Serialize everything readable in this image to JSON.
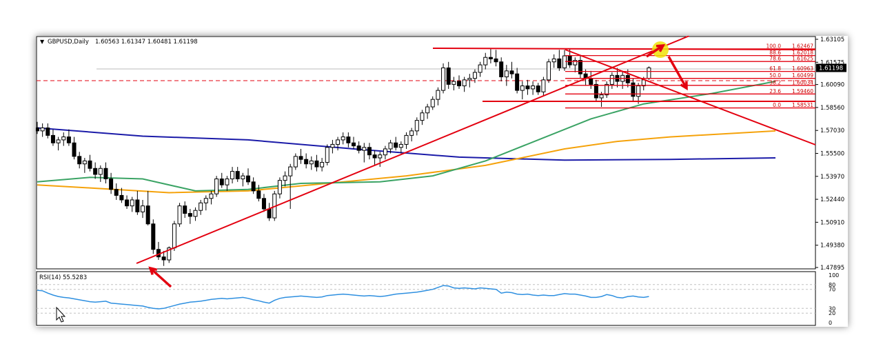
{
  "chart_header": {
    "arrow": "▼",
    "symbol": "GBPUSD,Daily",
    "ohlc": "1.60563 1.61347 1.60481 1.61198"
  },
  "rsi_header": "RSI(14) 55.5283",
  "colors": {
    "up_candle": "#ffffff",
    "down_candle": "#000000",
    "trend_lines": "#e3000f",
    "ma_blue": "#1a1aa8",
    "ma_orange": "#f5a20a",
    "ma_green": "#3aa364",
    "rsi_line": "#2d8fe0",
    "annotation_arrow": "#e3000f",
    "highlight": "#f0e30a",
    "price_tag_bg": "#000000"
  },
  "chart_data": {
    "type": "candlestick",
    "price_axis": {
      "ylim": [
        1.47895,
        1.63105
      ],
      "ticks": [
        "1.63105",
        "1.61575",
        "1.60090",
        "1.58560",
        "1.57030",
        "1.55500",
        "1.53970",
        "1.52440",
        "1.50910",
        "1.49380",
        "1.47895"
      ]
    },
    "current_price": "1.61198",
    "candles": [
      [
        1.572,
        1.576,
        1.568,
        1.57
      ],
      [
        1.57,
        1.575,
        1.566,
        1.572
      ],
      [
        1.572,
        1.575,
        1.565,
        1.567
      ],
      [
        1.567,
        1.571,
        1.56,
        1.562
      ],
      [
        1.562,
        1.566,
        1.557,
        1.564
      ],
      [
        1.564,
        1.569,
        1.56,
        1.566
      ],
      [
        1.566,
        1.571,
        1.56,
        1.562
      ],
      [
        1.562,
        1.566,
        1.551,
        1.553
      ],
      [
        1.553,
        1.556,
        1.545,
        1.548
      ],
      [
        1.548,
        1.552,
        1.542,
        1.55
      ],
      [
        1.55,
        1.554,
        1.543,
        1.545
      ],
      [
        1.545,
        1.549,
        1.538,
        1.541
      ],
      [
        1.541,
        1.547,
        1.536,
        1.545
      ],
      [
        1.545,
        1.549,
        1.535,
        1.538
      ],
      [
        1.538,
        1.542,
        1.528,
        1.531
      ],
      [
        1.531,
        1.535,
        1.524,
        1.527
      ],
      [
        1.527,
        1.532,
        1.522,
        1.524
      ],
      [
        1.524,
        1.527,
        1.518,
        1.52
      ],
      [
        1.52,
        1.526,
        1.516,
        1.524
      ],
      [
        1.524,
        1.53,
        1.514,
        1.516
      ],
      [
        1.516,
        1.524,
        1.512,
        1.52
      ],
      [
        1.52,
        1.53,
        1.507,
        1.508
      ],
      [
        1.508,
        1.511,
        1.488,
        1.491
      ],
      [
        1.491,
        1.496,
        1.484,
        1.486
      ],
      [
        1.486,
        1.49,
        1.48,
        1.484
      ],
      [
        1.484,
        1.493,
        1.482,
        1.492
      ],
      [
        1.492,
        1.51,
        1.49,
        1.508
      ],
      [
        1.508,
        1.522,
        1.506,
        1.52
      ],
      [
        1.52,
        1.523,
        1.512,
        1.515
      ],
      [
        1.515,
        1.518,
        1.508,
        1.513
      ],
      [
        1.513,
        1.519,
        1.51,
        1.517
      ],
      [
        1.517,
        1.524,
        1.514,
        1.522
      ],
      [
        1.522,
        1.527,
        1.517,
        1.525
      ],
      [
        1.525,
        1.53,
        1.521,
        1.528
      ],
      [
        1.528,
        1.54,
        1.526,
        1.538
      ],
      [
        1.538,
        1.542,
        1.532,
        1.534
      ],
      [
        1.534,
        1.54,
        1.53,
        1.538
      ],
      [
        1.538,
        1.546,
        1.535,
        1.543
      ],
      [
        1.543,
        1.546,
        1.536,
        1.538
      ],
      [
        1.538,
        1.542,
        1.533,
        1.54
      ],
      [
        1.54,
        1.545,
        1.534,
        1.536
      ],
      [
        1.536,
        1.539,
        1.528,
        1.53
      ],
      [
        1.53,
        1.534,
        1.523,
        1.525
      ],
      [
        1.525,
        1.528,
        1.516,
        1.518
      ],
      [
        1.518,
        1.522,
        1.51,
        1.512
      ],
      [
        1.512,
        1.53,
        1.51,
        1.528
      ],
      [
        1.528,
        1.539,
        1.525,
        1.537
      ],
      [
        1.537,
        1.543,
        1.533,
        1.54
      ],
      [
        1.54,
        1.548,
        1.518,
        1.546
      ],
      [
        1.546,
        1.555,
        1.544,
        1.553
      ],
      [
        1.553,
        1.558,
        1.548,
        1.551
      ],
      [
        1.551,
        1.555,
        1.545,
        1.548
      ],
      [
        1.548,
        1.553,
        1.544,
        1.55
      ],
      [
        1.55,
        1.554,
        1.543,
        1.546
      ],
      [
        1.546,
        1.552,
        1.543,
        1.549
      ],
      [
        1.549,
        1.561,
        1.547,
        1.559
      ],
      [
        1.559,
        1.564,
        1.555,
        1.561
      ],
      [
        1.561,
        1.566,
        1.557,
        1.564
      ],
      [
        1.564,
        1.569,
        1.561,
        1.566
      ],
      [
        1.566,
        1.569,
        1.559,
        1.562
      ],
      [
        1.562,
        1.566,
        1.558,
        1.56
      ],
      [
        1.56,
        1.563,
        1.555,
        1.557
      ],
      [
        1.557,
        1.562,
        1.549,
        1.559
      ],
      [
        1.559,
        1.562,
        1.551,
        1.554
      ],
      [
        1.554,
        1.557,
        1.547,
        1.552
      ],
      [
        1.552,
        1.556,
        1.546,
        1.554
      ],
      [
        1.554,
        1.56,
        1.551,
        1.558
      ],
      [
        1.558,
        1.564,
        1.555,
        1.562
      ],
      [
        1.562,
        1.566,
        1.557,
        1.559
      ],
      [
        1.559,
        1.563,
        1.555,
        1.561
      ],
      [
        1.561,
        1.569,
        1.558,
        1.567
      ],
      [
        1.567,
        1.572,
        1.563,
        1.57
      ],
      [
        1.57,
        1.579,
        1.567,
        1.577
      ],
      [
        1.577,
        1.584,
        1.574,
        1.582
      ],
      [
        1.582,
        1.588,
        1.578,
        1.586
      ],
      [
        1.586,
        1.593,
        1.584,
        1.591
      ],
      [
        1.591,
        1.599,
        1.587,
        1.597
      ],
      [
        1.597,
        1.615,
        1.595,
        1.612
      ],
      [
        1.612,
        1.616,
        1.598,
        1.601
      ],
      [
        1.601,
        1.606,
        1.597,
        1.603
      ],
      [
        1.603,
        1.607,
        1.598,
        1.6
      ],
      [
        1.6,
        1.606,
        1.596,
        1.604
      ],
      [
        1.604,
        1.608,
        1.599,
        1.605
      ],
      [
        1.605,
        1.611,
        1.602,
        1.609
      ],
      [
        1.609,
        1.616,
        1.606,
        1.614
      ],
      [
        1.614,
        1.622,
        1.611,
        1.619
      ],
      [
        1.619,
        1.625,
        1.615,
        1.618
      ],
      [
        1.618,
        1.624,
        1.613,
        1.616
      ],
      [
        1.616,
        1.619,
        1.603,
        1.606
      ],
      [
        1.606,
        1.614,
        1.6,
        1.61
      ],
      [
        1.61,
        1.616,
        1.605,
        1.608
      ],
      [
        1.608,
        1.612,
        1.595,
        1.597
      ],
      [
        1.597,
        1.603,
        1.591,
        1.6
      ],
      [
        1.6,
        1.604,
        1.594,
        1.598
      ],
      [
        1.598,
        1.603,
        1.594,
        1.6
      ],
      [
        1.6,
        1.602,
        1.594,
        1.596
      ],
      [
        1.596,
        1.606,
        1.593,
        1.604
      ],
      [
        1.604,
        1.618,
        1.602,
        1.616
      ],
      [
        1.616,
        1.621,
        1.612,
        1.618
      ],
      [
        1.618,
        1.624,
        1.61,
        1.612
      ],
      [
        1.612,
        1.624,
        1.61,
        1.62
      ],
      [
        1.62,
        1.625,
        1.612,
        1.614
      ],
      [
        1.614,
        1.619,
        1.609,
        1.617
      ],
      [
        1.617,
        1.62,
        1.605,
        1.608
      ],
      [
        1.608,
        1.611,
        1.6,
        1.605
      ],
      [
        1.605,
        1.61,
        1.598,
        1.601
      ],
      [
        1.601,
        1.604,
        1.59,
        1.592
      ],
      [
        1.592,
        1.596,
        1.586,
        1.594
      ],
      [
        1.594,
        1.603,
        1.592,
        1.601
      ],
      [
        1.601,
        1.609,
        1.598,
        1.607
      ],
      [
        1.607,
        1.612,
        1.599,
        1.603
      ],
      [
        1.603,
        1.61,
        1.598,
        1.607
      ],
      [
        1.607,
        1.611,
        1.599,
        1.602
      ],
      [
        1.602,
        1.605,
        1.59,
        1.593
      ],
      [
        1.593,
        1.602,
        1.588,
        1.6
      ],
      [
        1.6,
        1.606,
        1.597,
        1.604
      ],
      [
        1.605,
        1.613,
        1.604,
        1.612
      ]
    ],
    "moving_averages": [
      {
        "color": "blue",
        "points": [
          [
            0,
            1.572
          ],
          [
            20,
            1.5665
          ],
          [
            40,
            1.564
          ],
          [
            60,
            1.558
          ],
          [
            80,
            1.5525
          ],
          [
            100,
            1.5505
          ],
          [
            120,
            1.551
          ],
          [
            140,
            1.552
          ]
        ]
      },
      {
        "color": "orange",
        "points": [
          [
            0,
            1.534
          ],
          [
            10,
            1.532
          ],
          [
            25,
            1.5288
          ],
          [
            40,
            1.53
          ],
          [
            55,
            1.535
          ],
          [
            70,
            1.54
          ],
          [
            85,
            1.547
          ],
          [
            100,
            1.558
          ],
          [
            110,
            1.563
          ],
          [
            120,
            1.566
          ],
          [
            140,
            1.57
          ]
        ]
      },
      {
        "color": "green",
        "points": [
          [
            0,
            1.536
          ],
          [
            10,
            1.539
          ],
          [
            20,
            1.538
          ],
          [
            30,
            1.53
          ],
          [
            40,
            1.531
          ],
          [
            50,
            1.535
          ],
          [
            65,
            1.536
          ],
          [
            75,
            1.54
          ],
          [
            85,
            1.55
          ],
          [
            95,
            1.564
          ],
          [
            105,
            1.578
          ],
          [
            115,
            1.588
          ],
          [
            128,
            1.595
          ],
          [
            140,
            1.603
          ]
        ]
      }
    ],
    "fibonacci": [
      {
        "level": "100.0",
        "price": "1.62467"
      },
      {
        "level": "88.6",
        "price": "1.62018"
      },
      {
        "level": "78.6",
        "price": "1.61625"
      },
      {
        "level": "61.8",
        "price": "1.60963"
      },
      {
        "level": "50.0",
        "price": "1.60499"
      },
      {
        "level": "38.2",
        "price": "1.60034"
      },
      {
        "level": "23.6",
        "price": "1.59460"
      },
      {
        "level": "0.0",
        "price": "1.58531"
      }
    ],
    "rsi": {
      "ticks": [
        "100",
        "80",
        "70",
        "30",
        "20",
        "0"
      ],
      "values": [
        68,
        67,
        62,
        58,
        55,
        53,
        52,
        50,
        48,
        46,
        44,
        43,
        44,
        45,
        41,
        40,
        39,
        38,
        37,
        36,
        35,
        32,
        30,
        29,
        30,
        33,
        36,
        39,
        41,
        43,
        44,
        45,
        47,
        49,
        50,
        51,
        50,
        51,
        52,
        53,
        51,
        48,
        46,
        43,
        41,
        47,
        51,
        53,
        54,
        55,
        56,
        55,
        54,
        53,
        54,
        57,
        58,
        59,
        60,
        59,
        58,
        57,
        56,
        57,
        56,
        55,
        56,
        58,
        60,
        61,
        62,
        63,
        64,
        66,
        68,
        70,
        74,
        78,
        77,
        73,
        72,
        73,
        72,
        71,
        73,
        72,
        71,
        70,
        62,
        64,
        63,
        60,
        59,
        60,
        58,
        57,
        58,
        57,
        57,
        59,
        61,
        60,
        60,
        58,
        56,
        53,
        53,
        55,
        59,
        57,
        53,
        52,
        55,
        56,
        54,
        53,
        55
      ]
    }
  }
}
